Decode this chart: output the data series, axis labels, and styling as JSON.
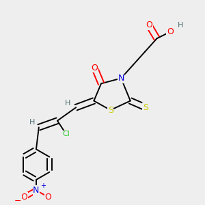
{
  "background_color": "#eeeeee",
  "bond_color": "#000000",
  "figsize": [
    3.0,
    3.0
  ],
  "dpi": 100,
  "lw": 1.4,
  "atom_colors": {
    "O": "#ff0000",
    "N": "#0000dd",
    "S_ring": "#cccc00",
    "S_thione": "#cccc00",
    "Cl": "#33cc33",
    "H": "#507070",
    "minus": "#ff0000",
    "plus": "#0000dd"
  }
}
